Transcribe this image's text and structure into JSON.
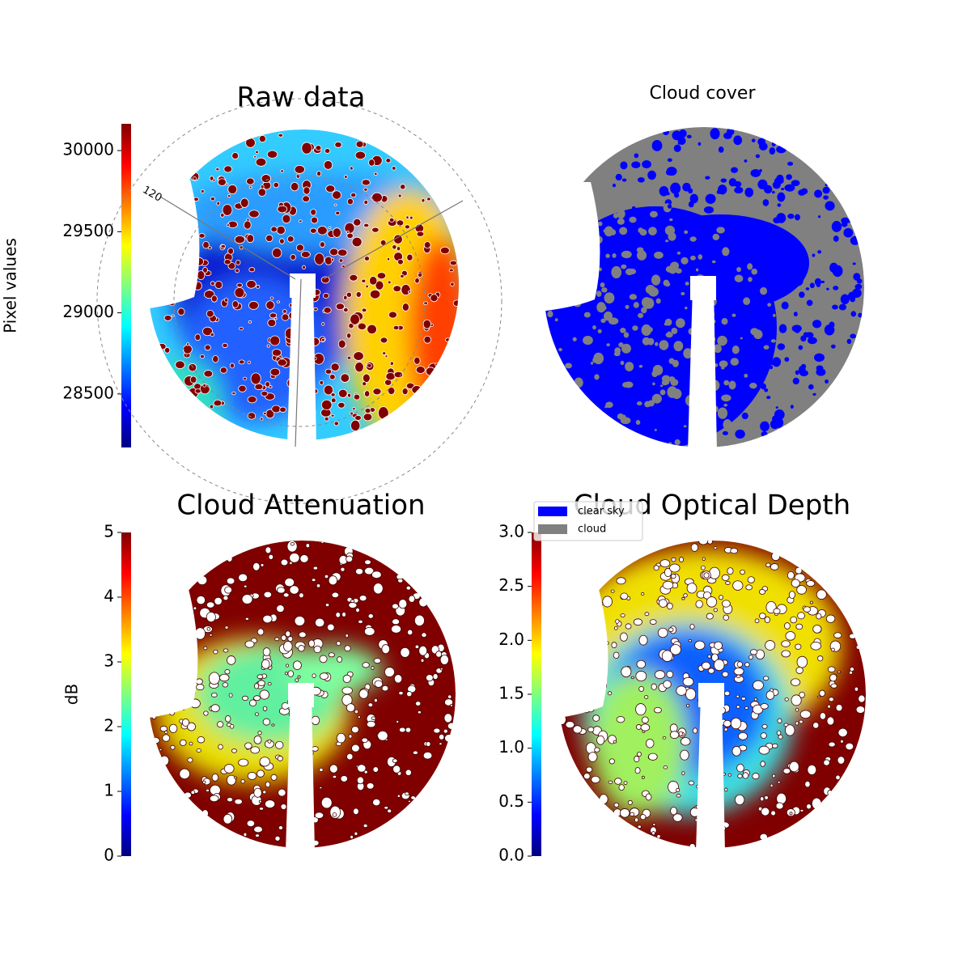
{
  "chart_data": [
    {
      "type": "heatmap",
      "title": "Raw data",
      "ylabel": "Pixel values",
      "ylim": [
        28170,
        30165
      ],
      "yticks": [
        28500,
        29000,
        29500,
        30000
      ],
      "colormap": "jet",
      "annotations": [
        "120"
      ]
    },
    {
      "type": "mask",
      "title": "Cloud cover",
      "series": [
        {
          "name": "clear sky",
          "color": "#0000ff"
        },
        {
          "name": "cloud",
          "color": "#808080"
        }
      ]
    },
    {
      "type": "heatmap",
      "title": "Cloud Attenuation",
      "ylabel": "dB",
      "ylim": [
        0,
        5
      ],
      "yticks": [
        0,
        1,
        2,
        3,
        4,
        5
      ],
      "colormap": "jet"
    },
    {
      "type": "heatmap",
      "title": "Cloud Optical Depth",
      "ylim": [
        0,
        3
      ],
      "yticks": [
        {
          "value": 0,
          "label": "0.0"
        },
        {
          "value": 0.5,
          "label": "0.5"
        },
        {
          "value": 1,
          "label": "1.0"
        },
        {
          "value": 1.5,
          "label": "1.5"
        },
        {
          "value": 2,
          "label": "2.0"
        },
        {
          "value": 2.5,
          "label": "2.5"
        },
        {
          "value": 3,
          "label": "3.0"
        }
      ],
      "colormap": "jet"
    }
  ]
}
